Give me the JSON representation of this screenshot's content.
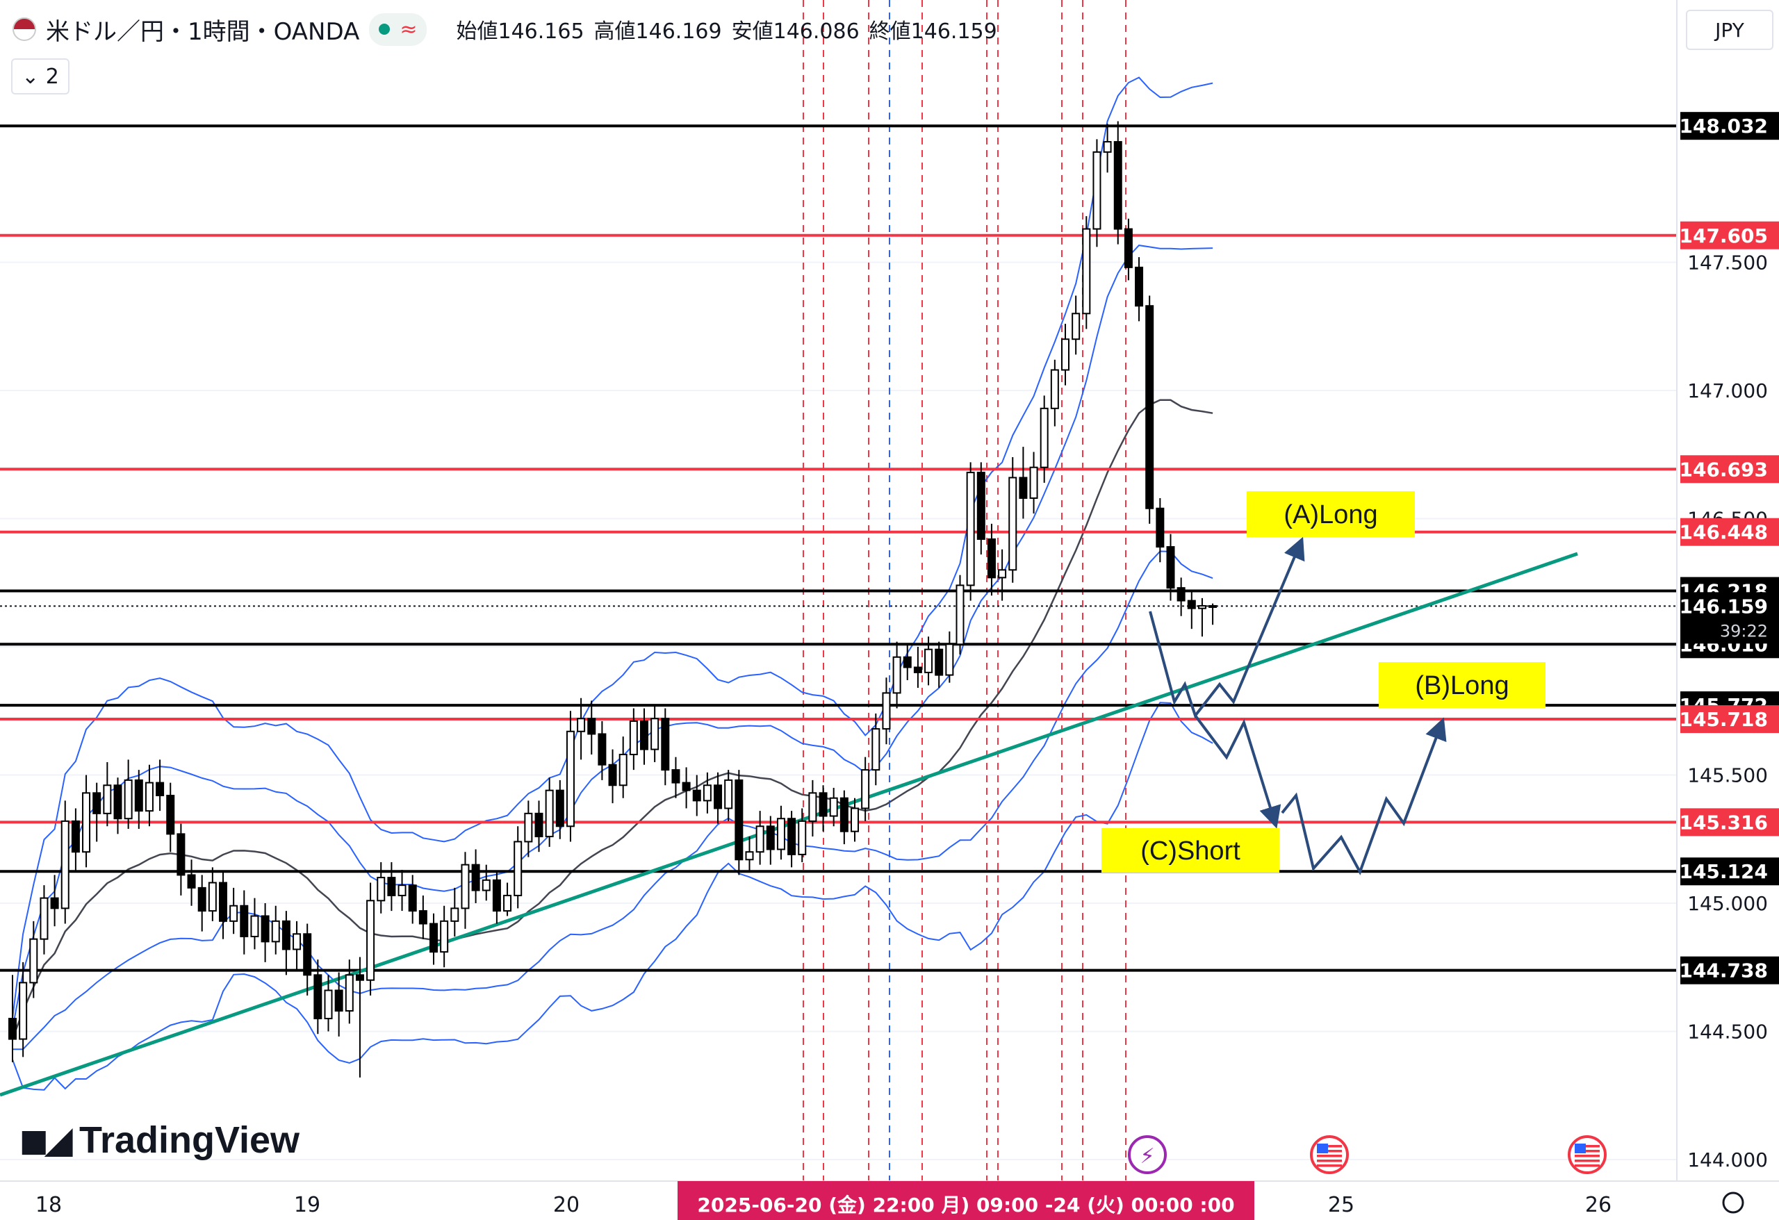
{
  "header": {
    "symbol": "米ドル／円・1時間・OANDA",
    "open": "始値146.165",
    "high": "高値146.169",
    "low": "安値146.086",
    "close": "終値146.159",
    "indicator_toggle": "⌄ 2",
    "currency": "JPY",
    "brand": "TradingView"
  },
  "colors": {
    "up": "#ffffff",
    "down": "#000000",
    "support_black": "#000000",
    "level_red": "#f23645",
    "band_blue": "#2962ff",
    "ma_grey": "#434651",
    "trendline": "#089981",
    "arrow": "#2a4b7c",
    "label_yellow": "#ffff00"
  },
  "chart_data": {
    "type": "candlestick",
    "timeframe": "1時間",
    "y_axis": {
      "min": 144.0,
      "max": 148.1,
      "ticks": [
        "144.000",
        "144.500",
        "145.000",
        "145.500",
        "146.000",
        "146.500",
        "147.000",
        "147.500"
      ]
    },
    "x_axis": {
      "labels": [
        "18",
        "19",
        "20",
        "25",
        "26"
      ],
      "crosshair_label": "2025-06-20 (金)   22:00  月)   09:00  -24 (火)   00:00  :00"
    },
    "horizontal_levels": [
      {
        "price": 148.032,
        "label": "148.032",
        "color": "black"
      },
      {
        "price": 147.605,
        "label": "147.605",
        "color": "red"
      },
      {
        "price": 146.693,
        "label": "146.693",
        "color": "red"
      },
      {
        "price": 146.448,
        "label": "146.448",
        "color": "red"
      },
      {
        "price": 146.218,
        "label": "146.218",
        "color": "black"
      },
      {
        "price": 146.01,
        "label": "146.010",
        "color": "black"
      },
      {
        "price": 145.772,
        "label": "145.772",
        "color": "black"
      },
      {
        "price": 145.718,
        "label": "145.718",
        "color": "red"
      },
      {
        "price": 145.316,
        "label": "145.316",
        "color": "red"
      },
      {
        "price": 145.124,
        "label": "145.124",
        "color": "black"
      },
      {
        "price": 144.738,
        "label": "144.738",
        "color": "black"
      }
    ],
    "last_price": {
      "price": 146.159,
      "label": "146.159",
      "countdown": "39:22"
    },
    "candles": [
      [
        144.55,
        144.47,
        144.72,
        144.38
      ],
      [
        144.47,
        144.69,
        144.77,
        144.4
      ],
      [
        144.69,
        144.86,
        144.93,
        144.63
      ],
      [
        144.86,
        145.02,
        145.07,
        144.8
      ],
      [
        145.02,
        144.98,
        145.11,
        144.91
      ],
      [
        144.98,
        145.32,
        145.4,
        144.92
      ],
      [
        145.32,
        145.2,
        145.37,
        145.12
      ],
      [
        145.2,
        145.43,
        145.5,
        145.14
      ],
      [
        145.43,
        145.35,
        145.47,
        145.24
      ],
      [
        145.35,
        145.46,
        145.55,
        145.3
      ],
      [
        145.46,
        145.33,
        145.49,
        145.27
      ],
      [
        145.33,
        145.48,
        145.56,
        145.29
      ],
      [
        145.48,
        145.36,
        145.52,
        145.29
      ],
      [
        145.36,
        145.47,
        145.54,
        145.3
      ],
      [
        145.47,
        145.42,
        145.56,
        145.36
      ],
      [
        145.42,
        145.27,
        145.47,
        145.2
      ],
      [
        145.27,
        145.11,
        145.31,
        145.03
      ],
      [
        145.11,
        145.06,
        145.17,
        144.99
      ],
      [
        145.06,
        144.97,
        145.11,
        144.89
      ],
      [
        144.97,
        145.08,
        145.14,
        144.93
      ],
      [
        145.08,
        144.93,
        145.12,
        144.86
      ],
      [
        144.93,
        144.99,
        145.06,
        144.88
      ],
      [
        144.99,
        144.87,
        145.05,
        144.8
      ],
      [
        144.87,
        144.95,
        145.02,
        144.82
      ],
      [
        144.95,
        144.85,
        145.0,
        144.77
      ],
      [
        144.85,
        144.93,
        144.99,
        144.8
      ],
      [
        144.93,
        144.82,
        144.97,
        144.72
      ],
      [
        144.82,
        144.88,
        144.93,
        144.74
      ],
      [
        144.88,
        144.72,
        144.92,
        144.64
      ],
      [
        144.72,
        144.55,
        144.78,
        144.49
      ],
      [
        144.55,
        144.66,
        144.72,
        144.5
      ],
      [
        144.66,
        144.58,
        144.73,
        144.48
      ],
      [
        144.58,
        144.72,
        144.78,
        144.53
      ],
      [
        144.72,
        144.7,
        144.79,
        144.32
      ],
      [
        144.7,
        145.01,
        145.08,
        144.64
      ],
      [
        145.01,
        145.1,
        145.16,
        144.96
      ],
      [
        145.1,
        145.03,
        145.16,
        144.97
      ],
      [
        145.03,
        145.07,
        145.13,
        144.97
      ],
      [
        145.07,
        144.97,
        145.11,
        144.92
      ],
      [
        144.97,
        144.92,
        145.03,
        144.86
      ],
      [
        144.92,
        144.81,
        144.96,
        144.76
      ],
      [
        144.81,
        144.93,
        144.99,
        144.75
      ],
      [
        144.93,
        144.98,
        145.06,
        144.87
      ],
      [
        144.98,
        145.15,
        145.2,
        144.9
      ],
      [
        145.15,
        145.05,
        145.21,
        145.0
      ],
      [
        145.05,
        145.09,
        145.15,
        145.01
      ],
      [
        145.09,
        144.97,
        145.12,
        144.92
      ],
      [
        144.97,
        145.03,
        145.08,
        144.95
      ],
      [
        145.03,
        145.24,
        145.3,
        144.98
      ],
      [
        145.24,
        145.35,
        145.4,
        145.18
      ],
      [
        145.35,
        145.26,
        145.4,
        145.2
      ],
      [
        145.26,
        145.44,
        145.49,
        145.22
      ],
      [
        145.44,
        145.3,
        145.48,
        145.25
      ],
      [
        145.3,
        145.67,
        145.75,
        145.24
      ],
      [
        145.67,
        145.72,
        145.8,
        145.56
      ],
      [
        145.72,
        145.66,
        145.79,
        145.58
      ],
      [
        145.66,
        145.54,
        145.71,
        145.48
      ],
      [
        145.54,
        145.46,
        145.6,
        145.39
      ],
      [
        145.46,
        145.58,
        145.65,
        145.41
      ],
      [
        145.58,
        145.71,
        145.76,
        145.52
      ],
      [
        145.71,
        145.6,
        145.76,
        145.54
      ],
      [
        145.6,
        145.72,
        145.77,
        145.55
      ],
      [
        145.72,
        145.52,
        145.76,
        145.46
      ],
      [
        145.52,
        145.47,
        145.57,
        145.41
      ],
      [
        145.47,
        145.44,
        145.53,
        145.37
      ],
      [
        145.44,
        145.4,
        145.5,
        145.34
      ],
      [
        145.4,
        145.46,
        145.51,
        145.35
      ],
      [
        145.46,
        145.37,
        145.51,
        145.31
      ],
      [
        145.37,
        145.48,
        145.52,
        145.32
      ],
      [
        145.48,
        145.17,
        145.52,
        145.11
      ],
      [
        145.17,
        145.2,
        145.26,
        145.12
      ],
      [
        145.2,
        145.3,
        145.36,
        145.15
      ],
      [
        145.3,
        145.21,
        145.34,
        145.15
      ],
      [
        145.21,
        145.33,
        145.38,
        145.17
      ],
      [
        145.33,
        145.19,
        145.36,
        145.14
      ],
      [
        145.19,
        145.32,
        145.37,
        145.16
      ],
      [
        145.32,
        145.43,
        145.48,
        145.26
      ],
      [
        145.43,
        145.34,
        145.46,
        145.28
      ],
      [
        145.34,
        145.41,
        145.45,
        145.3
      ],
      [
        145.41,
        145.28,
        145.44,
        145.23
      ],
      [
        145.28,
        145.37,
        145.41,
        145.24
      ],
      [
        145.37,
        145.52,
        145.57,
        145.32
      ],
      [
        145.52,
        145.68,
        145.74,
        145.46
      ],
      [
        145.68,
        145.82,
        145.88,
        145.62
      ],
      [
        145.82,
        145.96,
        146.02,
        145.76
      ],
      [
        145.96,
        145.92,
        146.01,
        145.87
      ],
      [
        145.92,
        145.9,
        146.0,
        145.84
      ],
      [
        145.9,
        145.99,
        146.04,
        145.85
      ],
      [
        145.99,
        145.89,
        146.02,
        145.84
      ],
      [
        145.89,
        146.01,
        146.06,
        145.86
      ],
      [
        146.01,
        146.24,
        146.28,
        145.97
      ],
      [
        146.24,
        146.68,
        146.72,
        146.18
      ],
      [
        146.68,
        146.42,
        146.72,
        146.36
      ],
      [
        146.42,
        146.27,
        146.48,
        146.2
      ],
      [
        146.27,
        146.3,
        146.38,
        146.18
      ],
      [
        146.3,
        146.66,
        146.74,
        146.25
      ],
      [
        146.66,
        146.58,
        146.78,
        146.5
      ],
      [
        146.58,
        146.7,
        146.76,
        146.52
      ],
      [
        146.7,
        146.93,
        146.98,
        146.64
      ],
      [
        146.93,
        147.08,
        147.12,
        146.86
      ],
      [
        147.08,
        147.2,
        147.26,
        147.02
      ],
      [
        147.2,
        147.3,
        147.37,
        147.14
      ],
      [
        147.3,
        147.63,
        147.68,
        147.24
      ],
      [
        147.63,
        147.93,
        147.98,
        147.56
      ],
      [
        147.93,
        147.97,
        148.04,
        147.85
      ],
      [
        147.97,
        147.63,
        148.05,
        147.57
      ],
      [
        147.63,
        147.48,
        147.67,
        147.43
      ],
      [
        147.48,
        147.33,
        147.52,
        147.27
      ],
      [
        147.33,
        146.54,
        147.37,
        146.48
      ],
      [
        146.54,
        146.39,
        146.58,
        146.33
      ],
      [
        146.39,
        146.23,
        146.44,
        146.18
      ],
      [
        146.23,
        146.18,
        146.27,
        146.12
      ],
      [
        146.18,
        146.15,
        146.22,
        146.07
      ],
      [
        146.15,
        146.16,
        146.19,
        146.04
      ],
      [
        146.16,
        146.159,
        146.169,
        146.086
      ]
    ],
    "annotations": [
      {
        "text": "(A)Long",
        "type": "label"
      },
      {
        "text": "(B)Long",
        "type": "label"
      },
      {
        "text": "(C)Short",
        "type": "label"
      }
    ]
  }
}
